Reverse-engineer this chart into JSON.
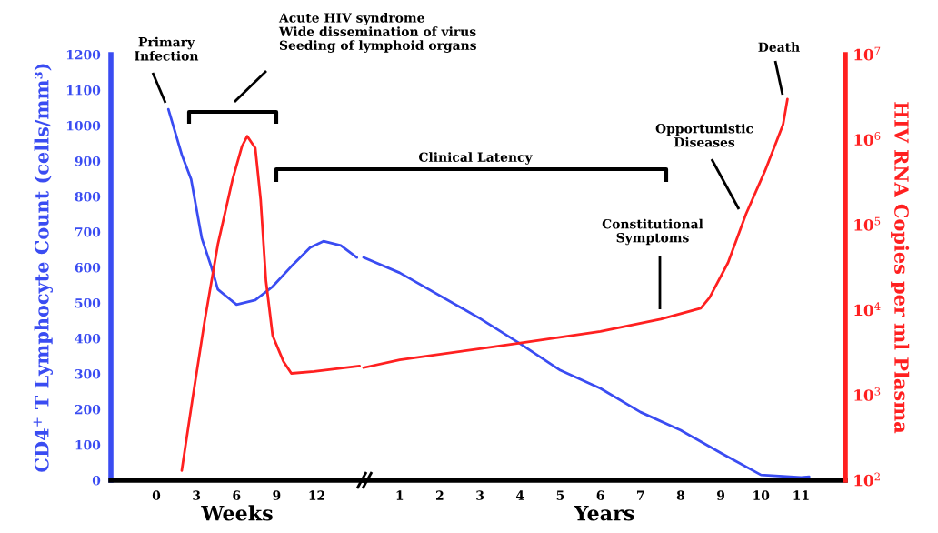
{
  "chart_data": [
    {
      "type": "line",
      "xlabel": "Weeks",
      "ylabel": "CD4$^{+}$ T Lymphocyte Count (cells/mm³)",
      "xlim": [
        -3.4,
        15.5
      ],
      "xticks": [
        0,
        3,
        6,
        9,
        12
      ],
      "ylim": [
        0,
        1200
      ],
      "yticks": [
        0,
        100,
        200,
        300,
        400,
        500,
        600,
        700,
        800,
        900,
        1000,
        1100,
        1200
      ],
      "y2lim": [
        100,
        10000000
      ],
      "log": "y2",
      "grid": false,
      "series": [
        {
          "color": "#3a4cf2",
          "x": [
            0.9,
            1.9,
            2.6,
            3.4,
            4.1,
            4.6,
            6.0,
            7.4,
            8.7,
            10.1,
            11.5,
            12.5,
            13.8,
            15.0
          ],
          "values": [
            1046,
            918,
            849,
            682,
            603,
            538,
            495,
            508,
            546,
            603,
            656,
            674,
            662,
            628
          ]
        },
        {
          "color": "#ff2020",
          "axis": "y2",
          "x": [
            1.9,
            2.7,
            3.6,
            4.6,
            5.7,
            6.4,
            6.8,
            7.4,
            7.8,
            8.2,
            8.7,
            9.5,
            10.1,
            11.8,
            15.2
          ],
          "values": [
            130,
            890,
            7200,
            59000,
            340000,
            830000,
            1100000,
            800000,
            200000,
            22000,
            5000,
            2500,
            1800,
            1900,
            2200
          ]
        }
      ],
      "annotations": [
        "Primary\nInfection",
        "Acute HIV syndrome\nWide dissemination of virus\nSeeding of lymphoid organs"
      ]
    },
    {
      "type": "line",
      "xlabel": "Years",
      "y2label": "HIV RNA Copies per ml Plasma",
      "xlim": [
        0.1,
        12.1
      ],
      "xticks": [
        1,
        2,
        3,
        4,
        5,
        6,
        7,
        8,
        9,
        10,
        11
      ],
      "ylim": [
        0,
        1200
      ],
      "y2lim": [
        100,
        10000000
      ],
      "y2ticks": [
        {
          "value": 100,
          "label": "10$^{2}$"
        },
        {
          "value": 1000,
          "label": "10$^{3}$"
        },
        {
          "value": 10000,
          "label": "10$^{4}$"
        },
        {
          "value": 100000,
          "label": "10$^{5}$"
        },
        {
          "value": 1000000,
          "label": "10$^{6}$"
        },
        {
          "value": 10000000,
          "label": "10$^{7}$"
        }
      ],
      "log": "y2",
      "grid": false,
      "series": [
        {
          "color": "#3a4cf2",
          "x": [
            0.1,
            1,
            3,
            4,
            5,
            6,
            7,
            8,
            9,
            10,
            11,
            11.2
          ],
          "values": [
            628,
            585,
            456,
            385,
            310,
            259,
            192,
            141,
            77,
            15,
            8,
            10
          ]
        },
        {
          "color": "#ff2020",
          "axis": "y2",
          "x": [
            0.1,
            1,
            3,
            4,
            6,
            7.5,
            8.5,
            8.72,
            9.18,
            9.63,
            10.1,
            10.55,
            10.66
          ],
          "values": [
            2100,
            2600,
            3500,
            4100,
            5600,
            7800,
            10500,
            14000,
            36000,
            135000,
            430000,
            1500000,
            3000000
          ]
        }
      ],
      "annotations": [
        "Clinical Latency",
        "Constitutional\nSymptoms",
        "Opportunistic\nDiseases",
        "Death"
      ]
    }
  ]
}
